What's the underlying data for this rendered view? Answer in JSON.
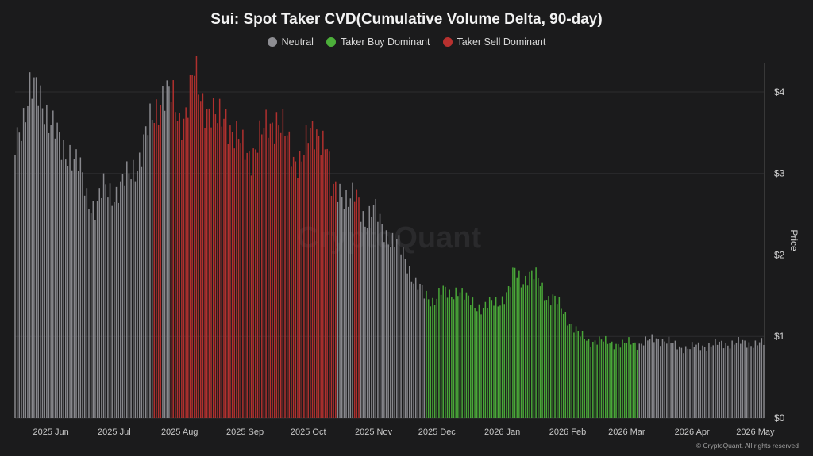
{
  "chart_data": {
    "type": "bar",
    "title": "Sui: Spot Taker CVD(Cumulative Volume Delta, 90-day)",
    "ylabel": "Price",
    "ylim": [
      0,
      4.35
    ],
    "yticks": [
      0,
      1,
      2,
      3,
      4
    ],
    "ytick_labels": [
      "$0",
      "$1",
      "$2",
      "$3",
      "$4"
    ],
    "xticks": [
      "2025 Jun",
      "2025 Jul",
      "2025 Aug",
      "2025 Sep",
      "2025 Oct",
      "2025 Nov",
      "2025 Dec",
      "2026 Jan",
      "2026 Feb",
      "2026 Mar",
      "2026 Apr",
      "2026 May"
    ],
    "grid": true,
    "legend_position": "top-center",
    "series": [
      {
        "name": "Neutral",
        "color": "#8e8e93"
      },
      {
        "name": "Taker Buy Dominant",
        "color": "#4caf3a"
      },
      {
        "name": "Taker Sell Dominant",
        "color": "#b8312f"
      }
    ],
    "segments": [
      {
        "series": "Neutral",
        "from": "2025-05-15",
        "to": "2025-07-19"
      },
      {
        "series": "Taker Sell Dominant",
        "from": "2025-07-20",
        "to": "2025-07-23"
      },
      {
        "series": "Neutral",
        "from": "2025-07-24",
        "to": "2025-07-27"
      },
      {
        "series": "Taker Sell Dominant",
        "from": "2025-07-28",
        "to": "2025-10-14"
      },
      {
        "series": "Neutral",
        "from": "2025-10-15",
        "to": "2025-10-22"
      },
      {
        "series": "Taker Sell Dominant",
        "from": "2025-10-23",
        "to": "2025-10-25"
      },
      {
        "series": "Neutral",
        "from": "2025-10-26",
        "to": "2025-11-25"
      },
      {
        "series": "Taker Buy Dominant",
        "from": "2025-11-26",
        "to": "2026-03-06"
      },
      {
        "series": "Neutral",
        "from": "2026-03-07",
        "to": "2026-05-05"
      }
    ],
    "price_points": [
      [
        "2025-05-15",
        3.3
      ],
      [
        "2025-05-19",
        3.75
      ],
      [
        "2025-05-22",
        4.05
      ],
      [
        "2025-05-25",
        3.95
      ],
      [
        "2025-05-29",
        3.85
      ],
      [
        "2025-06-02",
        3.6
      ],
      [
        "2025-06-06",
        3.25
      ],
      [
        "2025-06-10",
        3.3
      ],
      [
        "2025-06-14",
        3.1
      ],
      [
        "2025-06-18",
        2.7
      ],
      [
        "2025-06-22",
        2.6
      ],
      [
        "2025-06-26",
        2.8
      ],
      [
        "2025-06-30",
        2.75
      ],
      [
        "2025-07-04",
        2.85
      ],
      [
        "2025-07-08",
        2.95
      ],
      [
        "2025-07-12",
        3.15
      ],
      [
        "2025-07-16",
        3.45
      ],
      [
        "2025-07-20",
        3.7
      ],
      [
        "2025-07-24",
        4.05
      ],
      [
        "2025-07-28",
        3.9
      ],
      [
        "2025-08-01",
        3.65
      ],
      [
        "2025-08-04",
        3.8
      ],
      [
        "2025-08-08",
        4.2
      ],
      [
        "2025-08-11",
        3.95
      ],
      [
        "2025-08-15",
        3.8
      ],
      [
        "2025-08-19",
        3.6
      ],
      [
        "2025-08-23",
        3.75
      ],
      [
        "2025-08-27",
        3.45
      ],
      [
        "2025-08-31",
        3.3
      ],
      [
        "2025-09-04",
        3.25
      ],
      [
        "2025-09-08",
        3.4
      ],
      [
        "2025-09-12",
        3.6
      ],
      [
        "2025-09-16",
        3.7
      ],
      [
        "2025-09-20",
        3.45
      ],
      [
        "2025-09-24",
        3.2
      ],
      [
        "2025-09-28",
        3.2
      ],
      [
        "2025-10-02",
        3.45
      ],
      [
        "2025-10-06",
        3.55
      ],
      [
        "2025-10-10",
        3.3
      ],
      [
        "2025-10-12",
        2.75
      ],
      [
        "2025-10-16",
        2.85
      ],
      [
        "2025-10-20",
        2.65
      ],
      [
        "2025-10-24",
        2.7
      ],
      [
        "2025-10-28",
        2.45
      ],
      [
        "2025-11-01",
        2.55
      ],
      [
        "2025-11-05",
        2.35
      ],
      [
        "2025-11-09",
        2.2
      ],
      [
        "2025-11-13",
        2.1
      ],
      [
        "2025-11-17",
        1.9
      ],
      [
        "2025-11-21",
        1.65
      ],
      [
        "2025-11-25",
        1.5
      ],
      [
        "2025-11-29",
        1.45
      ],
      [
        "2025-12-03",
        1.55
      ],
      [
        "2025-12-07",
        1.5
      ],
      [
        "2025-12-11",
        1.6
      ],
      [
        "2025-12-15",
        1.45
      ],
      [
        "2025-12-19",
        1.4
      ],
      [
        "2025-12-23",
        1.35
      ],
      [
        "2025-12-27",
        1.4
      ],
      [
        "2025-12-31",
        1.45
      ],
      [
        "2026-01-04",
        1.55
      ],
      [
        "2026-01-07",
        1.8
      ],
      [
        "2026-01-10",
        1.7
      ],
      [
        "2026-01-14",
        1.75
      ],
      [
        "2026-01-18",
        1.7
      ],
      [
        "2026-01-22",
        1.5
      ],
      [
        "2026-01-26",
        1.45
      ],
      [
        "2026-01-30",
        1.3
      ],
      [
        "2026-02-03",
        1.15
      ],
      [
        "2026-02-07",
        1.0
      ],
      [
        "2026-02-11",
        0.95
      ],
      [
        "2026-02-15",
        0.95
      ],
      [
        "2026-02-19",
        0.93
      ],
      [
        "2026-02-23",
        0.92
      ],
      [
        "2026-02-27",
        0.9
      ],
      [
        "2026-03-03",
        0.93
      ],
      [
        "2026-03-07",
        0.91
      ],
      [
        "2026-03-11",
        0.94
      ],
      [
        "2026-03-15",
        0.98
      ],
      [
        "2026-03-19",
        0.95
      ],
      [
        "2026-03-23",
        0.9
      ],
      [
        "2026-03-27",
        0.87
      ],
      [
        "2026-03-31",
        0.86
      ],
      [
        "2026-04-04",
        0.88
      ],
      [
        "2026-04-08",
        0.89
      ],
      [
        "2026-04-12",
        0.9
      ],
      [
        "2026-04-16",
        0.91
      ],
      [
        "2026-04-20",
        0.92
      ],
      [
        "2026-04-24",
        0.92
      ],
      [
        "2026-04-28",
        0.92
      ],
      [
        "2026-05-05",
        0.91
      ]
    ]
  },
  "legend": {
    "neutral": "Neutral",
    "buy": "Taker Buy Dominant",
    "sell": "Taker Sell Dominant"
  },
  "watermark": "CryptoQuant",
  "credit": "© CryptoQuant. All rights reserved"
}
